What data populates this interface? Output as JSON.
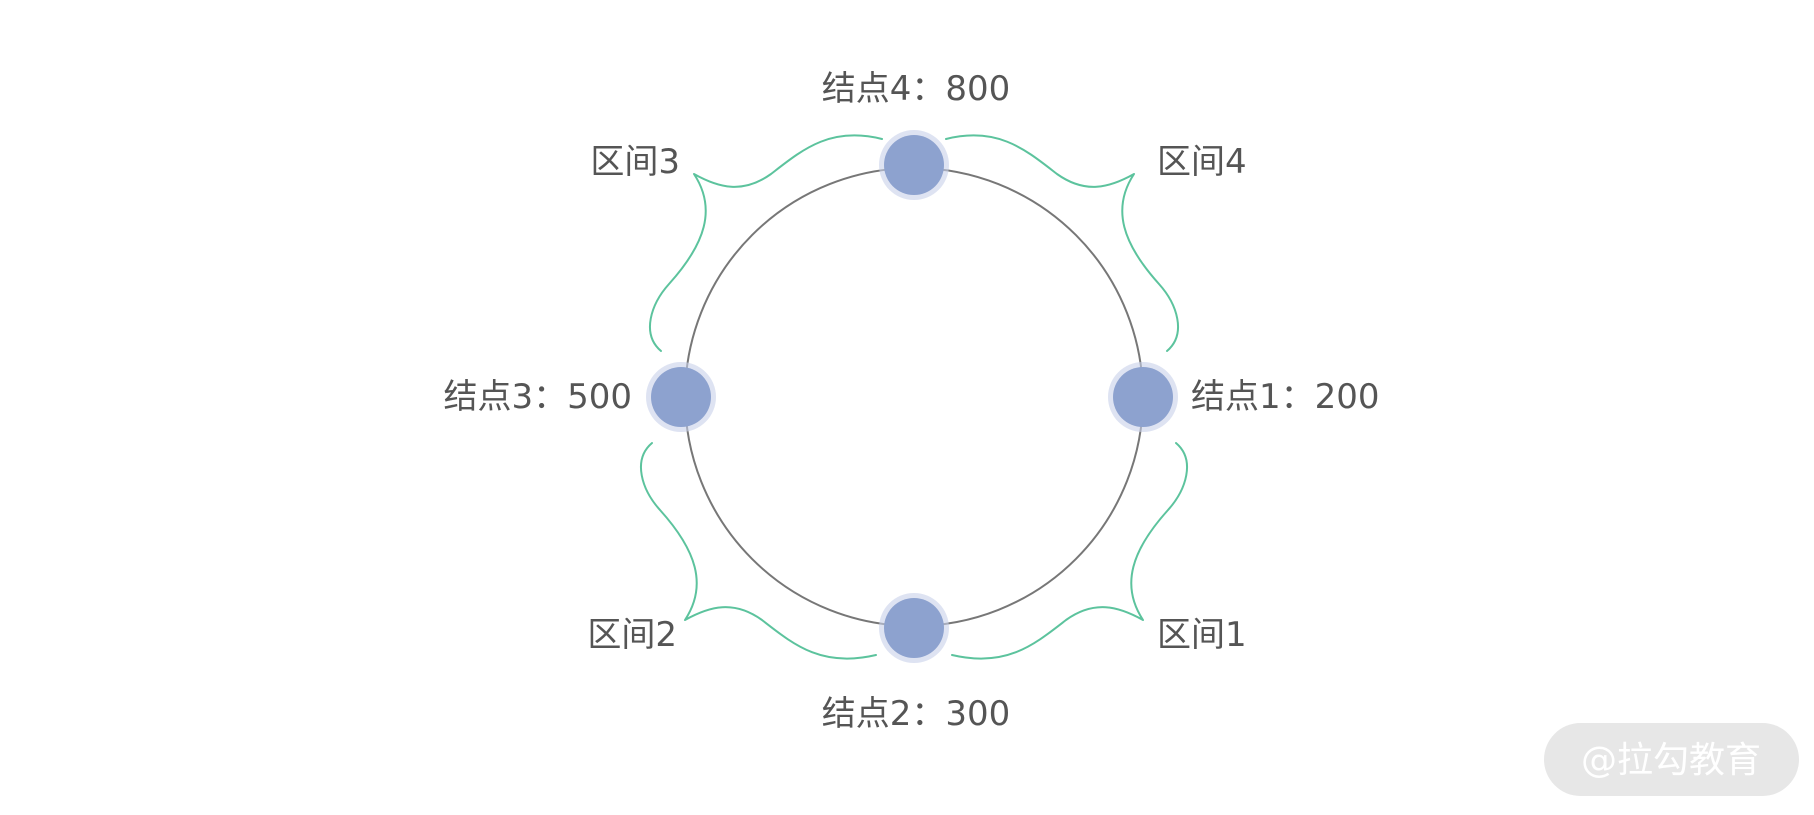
{
  "nodes": [
    {
      "label": "结点1：200"
    },
    {
      "label": "结点2：300"
    },
    {
      "label": "结点3：500"
    },
    {
      "label": "结点4：800"
    }
  ],
  "intervals": [
    {
      "label": "区间1"
    },
    {
      "label": "区间2"
    },
    {
      "label": "区间3"
    },
    {
      "label": "区间4"
    }
  ],
  "watermark": {
    "text": "@拉勾教育"
  },
  "colors": {
    "node": "#8da2cf",
    "ring": "#777777",
    "brace": "#5cc39d",
    "text": "#555555"
  }
}
